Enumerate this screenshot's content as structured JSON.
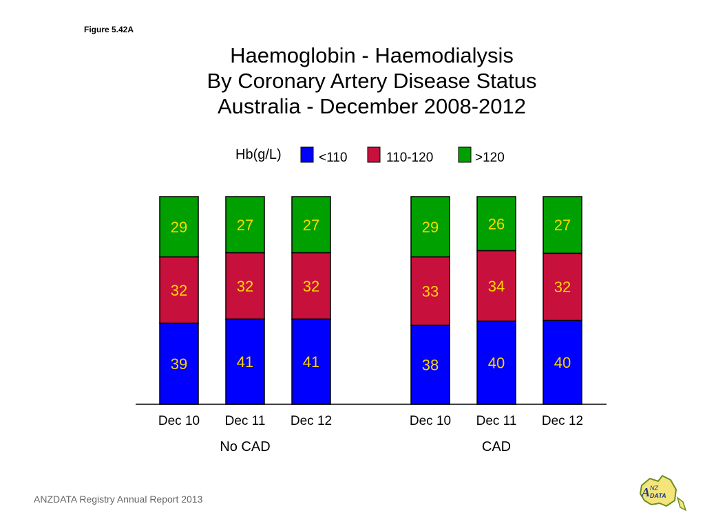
{
  "figure_label": "Figure 5.42A",
  "title_lines": [
    "Haemoglobin - Haemodialysis",
    "By Coronary Artery Disease Status",
    "Australia - December 2008-2012"
  ],
  "footer": "ANZDATA Registry Annual Report 2013",
  "logo": {
    "icon": "anzdata-logo",
    "text": "ANZDATA"
  },
  "colors": {
    "low": "#0000ff",
    "mid": "#c8103c",
    "high": "#00a000",
    "label": "#ffd700"
  },
  "chart_data": {
    "type": "bar",
    "stacked": true,
    "legend_title": "Hb(g/L)",
    "legend_position": "top",
    "categories": [
      "Dec 10",
      "Dec 11",
      "Dec 12",
      "Dec 10",
      "Dec 11",
      "Dec 12"
    ],
    "groups": [
      {
        "name": "No CAD",
        "categories": [
          "Dec 10",
          "Dec 11",
          "Dec 12"
        ]
      },
      {
        "name": "CAD",
        "categories": [
          "Dec 10",
          "Dec 11",
          "Dec 12"
        ]
      }
    ],
    "series": [
      {
        "name": "<110",
        "values": [
          39,
          41,
          41,
          38,
          40,
          40
        ]
      },
      {
        "name": "110-120",
        "values": [
          32,
          32,
          32,
          33,
          34,
          32
        ]
      },
      {
        "name": ">120",
        "values": [
          29,
          27,
          27,
          29,
          26,
          27
        ]
      }
    ],
    "ylim": [
      0,
      100
    ],
    "grid": false
  }
}
